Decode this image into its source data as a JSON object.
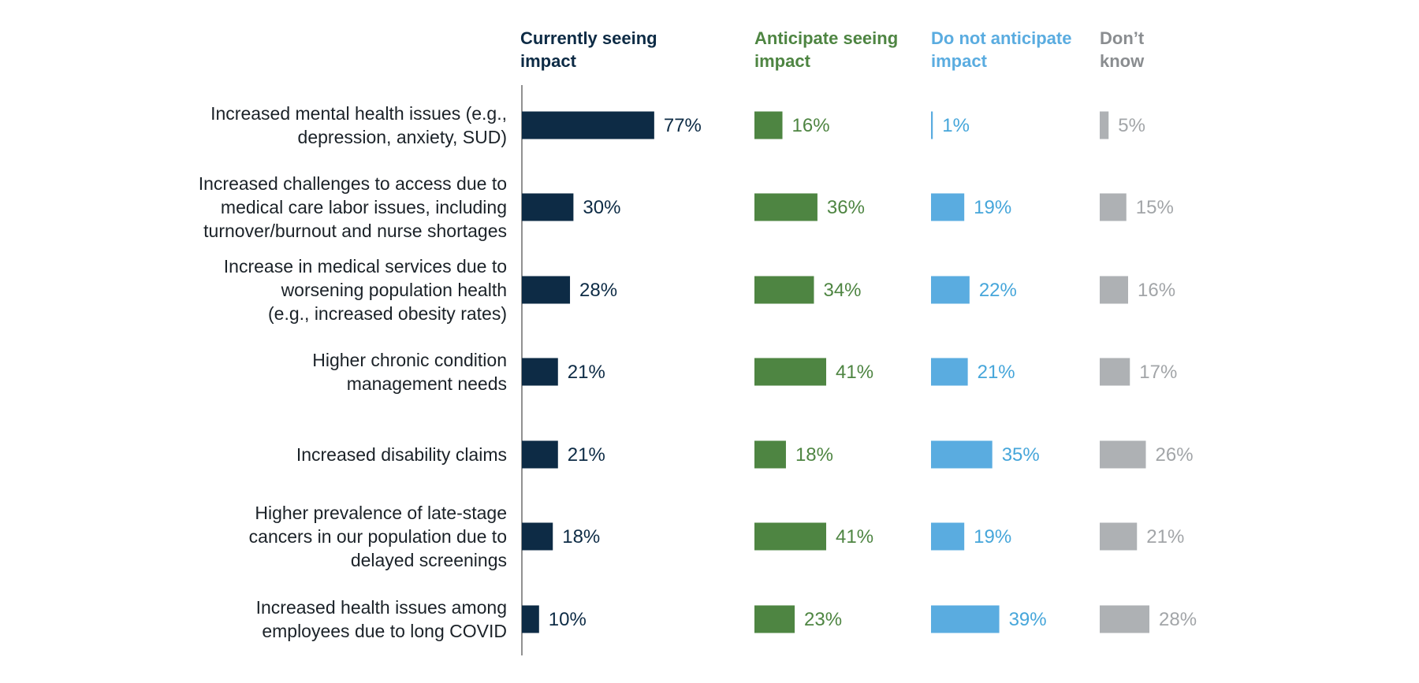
{
  "chart_data": {
    "type": "bar",
    "categories": [
      "Increased mental health issues (e.g., depression, anxiety, SUD)",
      "Increased challenges to access due to medical care labor issues, including turnover/burnout and nurse shortages",
      "Increase in medical services due to worsening population health (e.g., increased obesity rates)",
      "Higher chronic condition management needs",
      "Increased disability claims",
      "Higher prevalence of late-stage cancers in our population due to delayed screenings",
      "Increased health issues among employees due to long COVID"
    ],
    "category_lines": [
      [
        "Increased mental health issues (e.g.,",
        "depression, anxiety, SUD)"
      ],
      [
        "Increased challenges to access due to",
        "medical care labor issues, including",
        "turnover/burnout and nurse shortages"
      ],
      [
        "Increase in medical services due to",
        "worsening population health",
        "(e.g., increased obesity rates)"
      ],
      [
        "Higher chronic condition",
        "management needs"
      ],
      [
        "Increased disability claims"
      ],
      [
        "Higher prevalence of late-stage",
        "cancers in our population due to",
        "delayed screenings"
      ],
      [
        "Increased health issues among",
        "employees due to long COVID"
      ]
    ],
    "series": [
      {
        "name": "Currently seeing impact",
        "header_lines": [
          "Currently seeing",
          "impact"
        ],
        "color": "#0d2b45",
        "values": [
          77,
          30,
          28,
          21,
          21,
          18,
          10
        ]
      },
      {
        "name": "Anticipate seeing impact",
        "header_lines": [
          "Anticipate seeing",
          "impact"
        ],
        "color": "#4e8542",
        "values": [
          16,
          36,
          34,
          41,
          18,
          41,
          23
        ]
      },
      {
        "name": "Do not anticipate impact",
        "header_lines": [
          "Do not anticipate",
          "impact"
        ],
        "color": "#5aace0",
        "values": [
          1,
          19,
          22,
          21,
          35,
          19,
          39
        ]
      },
      {
        "name": "Don’t know",
        "header_lines": [
          "Don’t",
          "know"
        ],
        "color": "#aeb1b4",
        "values": [
          5,
          15,
          16,
          17,
          26,
          21,
          28
        ]
      }
    ],
    "unit": "%",
    "colors": {
      "category_text": "#1b2228",
      "axis_line": "#6d6d6d",
      "header_dont_know": "#8a8d90",
      "label_dont_know": "#a2a5a8",
      "label_do_not_anticipate": "#46a6da"
    }
  }
}
